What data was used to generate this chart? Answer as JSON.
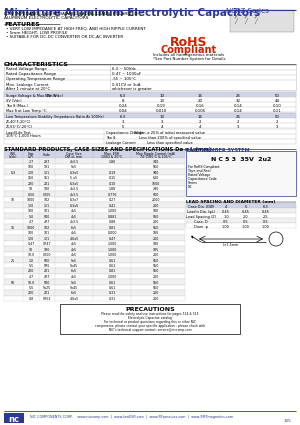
{
  "title": "Miniature Aluminum Electrolytic Capacitors",
  "series": "NSRZ Series",
  "subtitle1": "LOW IMPEDANCE, SUBMINIATURE, RADIAL LEADS, POLARIZED",
  "subtitle2": "ALUMINUM ELECTROLYTIC CAPACITORS",
  "features_title": "FEATURES",
  "features": [
    "VERY LOW IMPEDANCE AT HIGH FREQ. AND HIGH RIPPLE CURRENT",
    "5mm HEIGHT, LOW PROFILE",
    "SUITABLE FOR DC-DC CONVERTER OR DC-AC INVERTER"
  ],
  "rohs_line1": "RoHS",
  "rohs_line2": "Compliant",
  "rohs_sub1": "Includes all homogeneous materials",
  "rohs_sub2": "*See Part Number System for Details",
  "char_title": "CHARACTERISTICS",
  "char_rows": [
    [
      "Rated Voltage Range",
      "6.3 ~ 50Vdc"
    ],
    [
      "Rated Capacitance Range",
      "0.47 ~ 1000uF"
    ],
    [
      "Operating Temperature Range",
      "-55 ~ 105°C"
    ],
    [
      "Max. Leakage Current\nAfter 1 minute at 20°C",
      "0.01CV or 3uA,\nwhichever is greater"
    ]
  ],
  "surge_label": "Surge Voltage & Max. Tan δ",
  "surge_hdr": [
    "WV (Vdc)",
    "6.3",
    "10",
    "16",
    "25",
    "50"
  ],
  "surge_r1_label": "SV (Vdc)",
  "surge_r1": [
    "8",
    "13",
    "20",
    "32",
    "44"
  ],
  "surge_r2_label": "Tan δ (Max.)",
  "surge_r2": [
    "0.24",
    "0.19",
    "0.16",
    "0.14",
    "0.10"
  ],
  "surge_r3_label": "Max δ at Low Temp.°C",
  "surge_r3": [
    "0.04",
    "0.010",
    "0.105",
    "0.14",
    "0.11"
  ],
  "temp_label": "Low Temperature Stability\n(Impedance Ratio At 100Hz)",
  "temp_hdr": [
    "WV (Vdc)",
    "6.3",
    "10",
    "16",
    "25",
    "50"
  ],
  "temp_r1_label": "Z(-40°F-20°C)",
  "temp_r1": [
    "3",
    "3",
    "2",
    "2",
    "2"
  ],
  "temp_r2_label": "Z(-55°C/-20°C)",
  "temp_r2": [
    "5",
    "4",
    "4",
    "3",
    "3"
  ],
  "load_label": "Load/Life Test\n105°C 1,000 Hours",
  "load_r1": [
    "Capacitance Change",
    "Within ± 25% of initial measured value"
  ],
  "load_r2": [
    "Tan δ",
    "Less than 200% of specified value"
  ],
  "load_r3": [
    "Leakage Current",
    "Less than specified value"
  ],
  "std_title": "STANDARD PRODUCTS, CASE SIZES AND SPECIFICATIONS Dø x L (mm)",
  "std_hdr": [
    "W.V.\n(Vdc)",
    "Cap.\n(uF)",
    "Code",
    "Case Size\nDØ xL mm",
    "Max. ESR\n100Ω & 20°C",
    "Max Ripple Current (mA)\n70°C/85°C & 105°C"
  ],
  "std_rows": [
    [
      "",
      "2.7",
      "2R7",
      "4x3.5",
      "1.80",
      "340"
    ],
    [
      "",
      "100",
      "101",
      "5x5",
      "",
      "550"
    ],
    [
      "6.3",
      "120",
      "121",
      "6.3x5",
      "0.19",
      "940"
    ],
    [
      "",
      "150",
      "151",
      "5 x5",
      "0.15",
      "610"
    ],
    [
      "",
      "220",
      "221",
      "6.3x5",
      "0.10",
      "1000"
    ],
    [
      "",
      "10",
      "100",
      "4x3.5",
      "1.88",
      "290"
    ],
    [
      "",
      "0.56",
      "0005",
      "4x3.5",
      "0.776",
      "500"
    ],
    [
      "10",
      "1000",
      "102",
      "6.3x7",
      "0.27",
      "2000"
    ],
    [
      "",
      "120",
      "121",
      "6.3x5",
      "0.41",
      "200"
    ],
    [
      "",
      "100",
      "101",
      "4x5",
      "1.000",
      "180"
    ],
    [
      "",
      "5.0",
      "500",
      "4x5",
      "0.881",
      "550"
    ],
    [
      "",
      "4.7",
      "4R7",
      "4x3.5",
      "0.88",
      "200"
    ],
    [
      "16",
      "1000",
      "102",
      "6x5",
      "0.81",
      "550"
    ],
    [
      "",
      "100",
      "101",
      "4x5",
      "0.000",
      "180"
    ],
    [
      "",
      "120",
      "121",
      "4.0x5",
      "0.47",
      "200"
    ],
    [
      "",
      "0.47",
      "0R47",
      "4x5",
      "1.000",
      "180"
    ],
    [
      "",
      "10",
      "1R0",
      "4x5",
      "1.000",
      "185"
    ],
    [
      "",
      "10.0",
      "0050",
      "4x5",
      "1.000",
      "200"
    ],
    [
      "25",
      "1.0",
      "500",
      "5x5",
      "0.61",
      "550"
    ],
    [
      "",
      "5.5",
      "5R5",
      "5x45",
      "0.61",
      "550"
    ],
    [
      "",
      "220",
      "221",
      "6x5",
      "0.81",
      "550"
    ],
    [
      "",
      "4.7",
      "4R7",
      "4x5",
      "1.000",
      "200"
    ],
    [
      "50",
      "10.0",
      "500",
      "5x5",
      "0.61",
      "550"
    ],
    [
      "",
      "5.5",
      "5x25",
      "5x45",
      "0.61",
      "550"
    ],
    [
      "",
      "220",
      "221",
      "6x5",
      "0.31",
      "200"
    ],
    [
      "",
      "0.8",
      "0R51",
      "4.0x5",
      "0.31",
      "200"
    ]
  ],
  "pns_title": "PART NUMBER SYSTEM",
  "pns_example": "N C 5 3  35V  2u2",
  "pns_lines": [
    "For RoHS Compliant",
    "Tape and Reel",
    "Rated Voltage",
    "Capacitance Code",
    "Series",
    "NC"
  ],
  "lead_title": "LEAD SPACING AND DIAMETER (mm)",
  "lead_hdr": [
    "Case Dia. (DØ)",
    "4",
    "5",
    "6.3"
  ],
  "lead_r1": [
    "Leadin Dia. (φL)",
    "0.45",
    "0.45",
    "0.45"
  ],
  "lead_r2": [
    "Lead Spacing (Z)",
    "1.0",
    "2.0",
    "2.5"
  ],
  "lead_r3": [
    "Case. D",
    "0.5",
    "0.5",
    "0.5"
  ],
  "lead_r4": [
    "Diam. φ",
    "1.00",
    "1.00",
    "1.00"
  ],
  "footer_line": "NIC COMPONENTS CORP.    www.niccomp.com  |  www.lowESR.com  |  www.RFpassives.com  |  www.SMTmagnetics.com",
  "page_num": "105",
  "header_blue": "#2b3990",
  "dark_blue": "#1a237e",
  "red": "#cc2200",
  "black": "#000000",
  "white": "#ffffff",
  "light_gray": "#f0f0f0",
  "mid_gray": "#c0c0c0",
  "table_header_bg": "#d0d4e8"
}
